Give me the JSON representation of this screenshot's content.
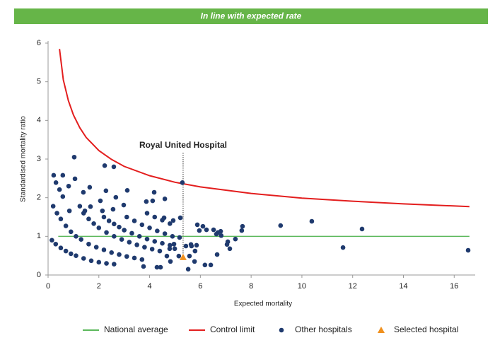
{
  "chart_data": {
    "type": "scatter",
    "title": "In line with expected rate",
    "x_label": "Expected mortality",
    "y_label": "Standardised mortality ratio",
    "xlim": [
      0,
      16.8
    ],
    "ylim": [
      0,
      6
    ],
    "xticks": [
      0,
      2,
      4,
      6,
      8,
      10,
      12,
      14,
      16
    ],
    "yticks": [
      0,
      1,
      2,
      3,
      4,
      5,
      6
    ],
    "annotation": "Royal United Hospital",
    "series": [
      {
        "name": "National average",
        "type": "line",
        "color": "#5cb85c",
        "x": [
          0.4,
          16.6
        ],
        "values": [
          1,
          1
        ]
      },
      {
        "name": "Control limit",
        "type": "line",
        "color": "#e31e1e",
        "x": [
          0.45,
          0.6,
          0.8,
          1,
          1.25,
          1.5,
          2,
          2.5,
          3,
          4,
          5,
          6,
          8,
          10,
          12,
          14,
          16.6
        ],
        "values": [
          5.85,
          5.05,
          4.51,
          4.14,
          3.81,
          3.56,
          3.22,
          2.99,
          2.81,
          2.57,
          2.4,
          2.28,
          2.11,
          1.99,
          1.91,
          1.84,
          1.77
        ]
      },
      {
        "name": "Other hospitals",
        "type": "scatter",
        "marker": "circle",
        "color": "#1f3a6e",
        "x": [
          0.22,
          0.58,
          0.31,
          0.45,
          0.58,
          0.81,
          1.03,
          1.06,
          0.84,
          1.39,
          1.64,
          2.23,
          2.59,
          2.28,
          3.12,
          4.18,
          4.6,
          5.29,
          2.67,
          2.98,
          3.87,
          4.12,
          2.06,
          2.56,
          2.14,
          1.67,
          1.45,
          4.57,
          4.93,
          5.21,
          5.88,
          6.1,
          5.96,
          6.24,
          6.52,
          6.69,
          6.8,
          6.82,
          7.08,
          7.16,
          7.05,
          7.38,
          7.66,
          7.63,
          9.16,
          10.39,
          12.37,
          11.62,
          16.55,
          5.85,
          5.79,
          5.63,
          5.43,
          5.65,
          5.57,
          5.77,
          5.52,
          6.18,
          6.41,
          6.66,
          6.63,
          4.96,
          4.79,
          4.99,
          4.82,
          4.43,
          4.29,
          3.76,
          5.15,
          4.68,
          5.18,
          0.15,
          0.3,
          0.5,
          0.7,
          0.9,
          1.1,
          1.4,
          1.7,
          2.0,
          2.3,
          2.6,
          0.2,
          0.35,
          0.5,
          0.7,
          0.9,
          1.1,
          1.3,
          1.6,
          1.9,
          2.2,
          2.5,
          2.8,
          3.1,
          3.4,
          3.7,
          1.25,
          1.4,
          1.6,
          1.8,
          2.0,
          2.3,
          2.6,
          2.9,
          3.2,
          3.5,
          3.8,
          4.1,
          4.4,
          2.2,
          2.4,
          2.6,
          2.8,
          3.0,
          3.3,
          3.6,
          3.9,
          4.2,
          4.5,
          4.8,
          3.1,
          3.4,
          3.7,
          4.0,
          4.3,
          4.6,
          4.9,
          3.9,
          4.2,
          4.5,
          4.8
        ],
        "values": [
          2.58,
          2.58,
          2.39,
          2.21,
          2.03,
          2.3,
          3.05,
          2.49,
          1.66,
          2.14,
          2.27,
          2.83,
          2.8,
          2.18,
          2.19,
          2.14,
          1.97,
          2.39,
          2.01,
          1.81,
          1.9,
          1.92,
          1.92,
          1.7,
          1.66,
          1.77,
          1.66,
          1.48,
          1.41,
          1.48,
          1.3,
          1.26,
          1.15,
          1.17,
          1.17,
          1.1,
          1.13,
          1.02,
          0.86,
          0.68,
          0.79,
          0.93,
          1.26,
          1.15,
          1.28,
          1.39,
          1.19,
          0.71,
          0.64,
          0.77,
          0.62,
          0.79,
          0.75,
          0.75,
          0.49,
          0.35,
          0.15,
          0.26,
          0.26,
          0.53,
          1.06,
          0.8,
          0.68,
          0.68,
          0.35,
          0.2,
          0.2,
          0.22,
          0.49,
          0.49,
          0.97,
          0.9,
          0.8,
          0.7,
          0.62,
          0.55,
          0.5,
          0.43,
          0.37,
          0.33,
          0.3,
          0.28,
          1.78,
          1.6,
          1.45,
          1.27,
          1.12,
          1.0,
          0.92,
          0.8,
          0.72,
          0.65,
          0.58,
          0.53,
          0.48,
          0.44,
          0.4,
          1.78,
          1.6,
          1.45,
          1.33,
          1.22,
          1.1,
          1.0,
          0.92,
          0.85,
          0.78,
          0.72,
          0.67,
          0.62,
          1.5,
          1.4,
          1.32,
          1.24,
          1.16,
          1.08,
          1.0,
          0.93,
          0.87,
          0.82,
          0.77,
          1.5,
          1.4,
          1.3,
          1.22,
          1.14,
          1.07,
          1.0,
          1.6,
          1.5,
          1.42,
          1.33
        ]
      },
      {
        "name": "Selected hospital",
        "type": "scatter",
        "marker": "triangle",
        "color": "#f0901e",
        "x": [
          5.32
        ],
        "values": [
          0.46
        ]
      }
    ]
  }
}
